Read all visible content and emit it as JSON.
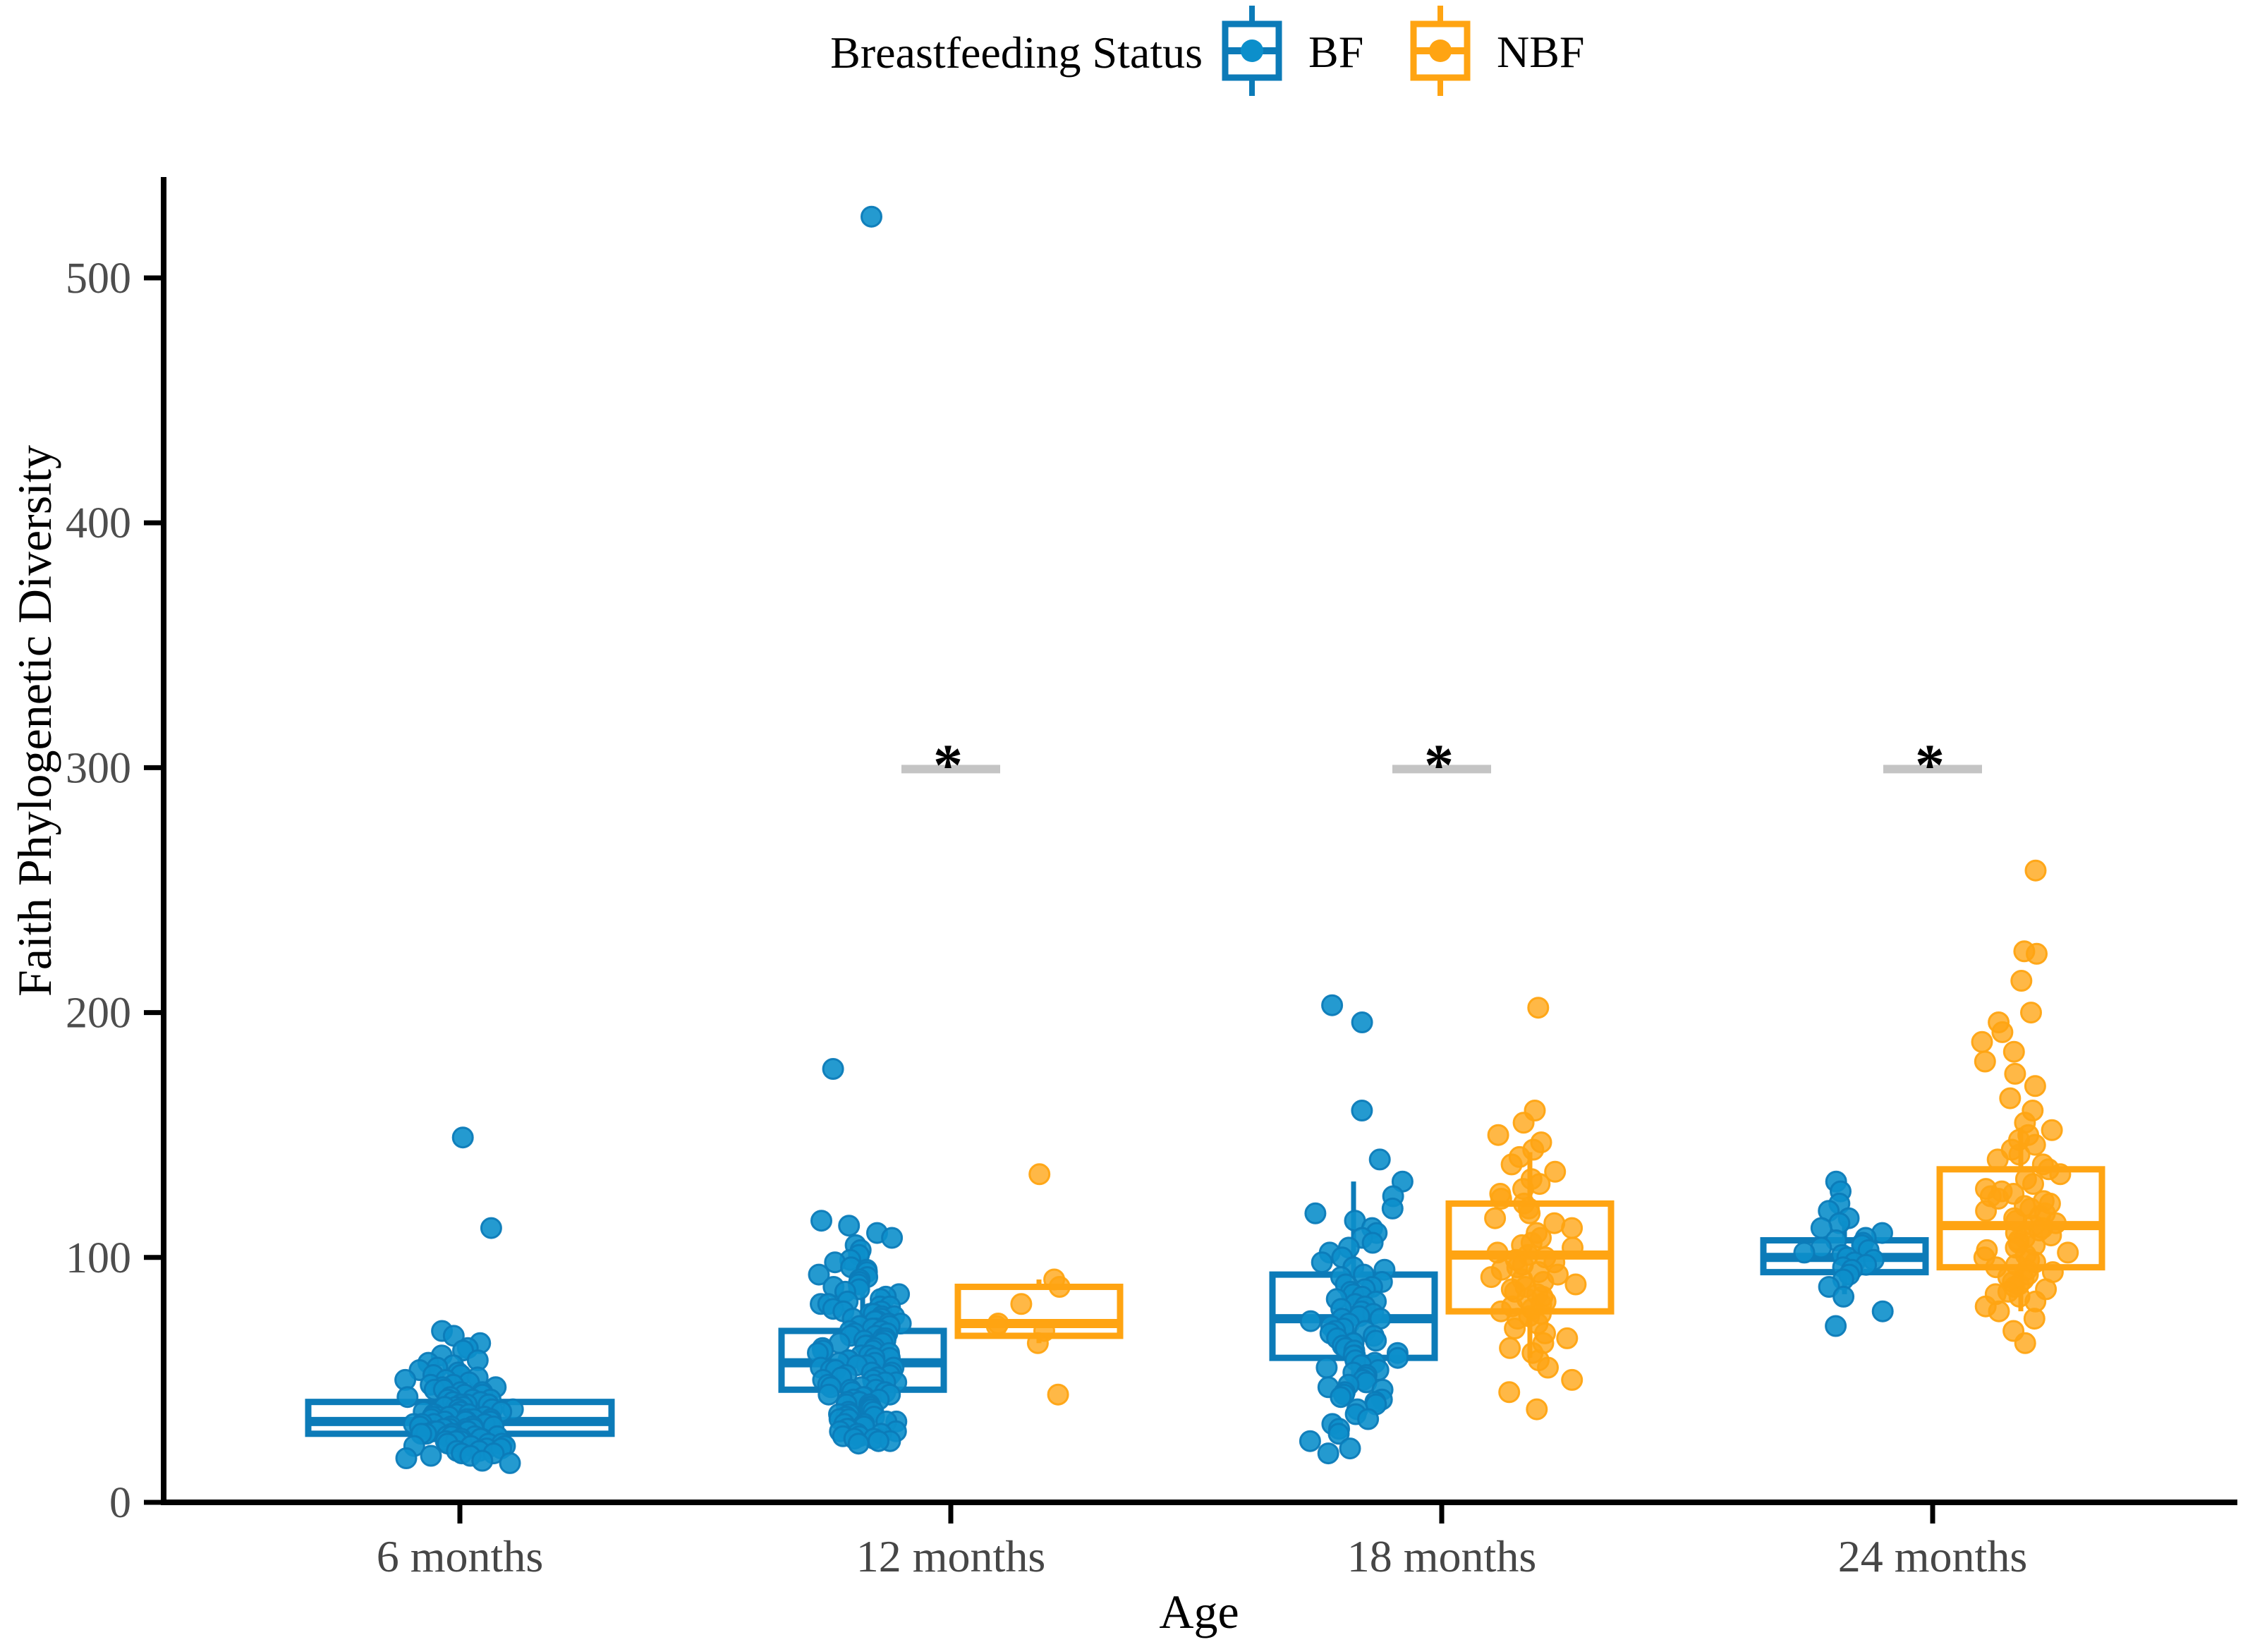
{
  "chart_data": {
    "type": "boxplot",
    "subtype": "grouped boxplot with jittered points",
    "title": "",
    "xlabel": "Age",
    "ylabel": "Faith Phylogenetic Diversity",
    "ylim": [
      0,
      540
    ],
    "yticks": [
      0,
      100,
      200,
      300,
      400,
      500
    ],
    "categories": [
      "6 months",
      "12 months",
      "18 months",
      "24 months"
    ],
    "legend": {
      "title": "Breastfeeding Status",
      "position": "top"
    },
    "colors": {
      "bf_stroke": "#0C7BB8",
      "bf_point": "#0C8FCB",
      "nbf_stroke": "#FFA412",
      "nbf_point": "#FFA412",
      "sig_bar": "#C4C4C4",
      "axis": "#000000",
      "tick_text": "#4D4D4D"
    },
    "series": [
      {
        "name": "BF",
        "stroke": "#0C7BB8",
        "point_fill": "#0C8FCB",
        "boxes": [
          {
            "category": "6 months",
            "whisker_low": 16,
            "q1": 28,
            "median": 33,
            "q3": 41,
            "whisker_high": 60
          },
          {
            "category": "12 months",
            "whisker_low": 26,
            "q1": 46,
            "median": 57,
            "q3": 70,
            "whisker_high": 104
          },
          {
            "category": "18 months",
            "whisker_low": 46,
            "q1": 59,
            "median": 75,
            "q3": 93,
            "whisker_high": 131
          },
          {
            "category": "24 months",
            "whisker_low": 85,
            "q1": 94,
            "median": 100,
            "q3": 107,
            "whisker_high": 115
          }
        ],
        "points": {
          "6 months": [
            149,
            112,
            70,
            68,
            65,
            63,
            62,
            60,
            58,
            57,
            56,
            55,
            54,
            53,
            52,
            52,
            51,
            50,
            50,
            49,
            48,
            48,
            47,
            47,
            46,
            46,
            45,
            45,
            44,
            44,
            43,
            43,
            42,
            42,
            42,
            41,
            41,
            40,
            40,
            40,
            39,
            39,
            39,
            38,
            38,
            38,
            37,
            37,
            37,
            36,
            36,
            36,
            35,
            35,
            35,
            35,
            34,
            34,
            34,
            34,
            33,
            33,
            33,
            33,
            32,
            32,
            32,
            32,
            31,
            31,
            31,
            31,
            30,
            30,
            30,
            30,
            29,
            29,
            29,
            29,
            28,
            28,
            28,
            28,
            27,
            27,
            27,
            27,
            26,
            26,
            26,
            25,
            25,
            25,
            24,
            24,
            24,
            23,
            23,
            23,
            22,
            22,
            21,
            21,
            20,
            20,
            19,
            19,
            18,
            17,
            16
          ],
          "12 months": [
            525,
            177,
            115,
            113,
            110,
            108,
            105,
            103,
            101,
            99,
            98,
            96,
            95,
            94,
            93,
            92,
            91,
            90,
            89,
            88,
            87,
            86,
            85,
            84,
            83,
            82,
            81,
            81,
            80,
            80,
            79,
            78,
            78,
            77,
            77,
            76,
            76,
            75,
            75,
            74,
            74,
            73,
            73,
            72,
            72,
            71,
            71,
            70,
            70,
            69,
            69,
            68,
            68,
            67,
            67,
            66,
            66,
            65,
            65,
            64,
            64,
            63,
            63,
            62,
            62,
            61,
            61,
            60,
            60,
            59,
            59,
            58,
            58,
            57,
            57,
            56,
            56,
            55,
            55,
            54,
            54,
            53,
            53,
            52,
            52,
            51,
            51,
            50,
            50,
            49,
            49,
            48,
            48,
            47,
            47,
            46,
            46,
            45,
            45,
            44,
            44,
            43,
            43,
            42,
            42,
            41,
            41,
            40,
            40,
            39,
            39,
            38,
            38,
            37,
            37,
            36,
            36,
            35,
            35,
            34,
            34,
            33,
            33,
            32,
            32,
            31,
            31,
            30,
            30,
            29,
            29,
            28,
            28,
            27,
            27,
            26,
            26,
            25,
            25,
            24
          ],
          "18 months": [
            203,
            196,
            160,
            140,
            131,
            125,
            120,
            118,
            115,
            112,
            110,
            108,
            106,
            104,
            102,
            100,
            98,
            96,
            95,
            93,
            92,
            90,
            89,
            88,
            87,
            86,
            85,
            84,
            83,
            82,
            81,
            80,
            79,
            78,
            77,
            76,
            75,
            75,
            74,
            73,
            72,
            71,
            70,
            70,
            69,
            68,
            67,
            66,
            65,
            65,
            64,
            63,
            62,
            61,
            60,
            60,
            59,
            58,
            57,
            56,
            55,
            54,
            53,
            52,
            51,
            50,
            49,
            48,
            47,
            46,
            45,
            44,
            43,
            42,
            41,
            40,
            38,
            36,
            34,
            32,
            30,
            28,
            25,
            22,
            20
          ],
          "24 months": [
            131,
            127,
            122,
            119,
            116,
            114,
            112,
            110,
            108,
            107,
            106,
            105,
            104,
            103,
            102,
            101,
            100,
            99,
            98,
            97,
            96,
            95,
            93,
            91,
            88,
            84,
            78,
            72
          ]
        }
      },
      {
        "name": "NBF",
        "stroke": "#FFA412",
        "point_fill": "#FFA412",
        "boxes": [
          {
            "category": "12 months",
            "whisker_low": 65,
            "q1": 68,
            "median": 73,
            "q3": 88,
            "whisker_high": 91
          },
          {
            "category": "18 months",
            "whisker_low": 59,
            "q1": 78,
            "median": 101,
            "q3": 122,
            "whisker_high": 143
          },
          {
            "category": "24 months",
            "whisker_low": 78,
            "q1": 96,
            "median": 113,
            "q3": 136,
            "whisker_high": 153
          }
        ],
        "points": {
          "12 months": [
            134,
            91,
            88,
            81,
            73,
            72,
            70,
            65,
            44
          ],
          "18 months": [
            202,
            160,
            155,
            150,
            147,
            144,
            141,
            138,
            135,
            132,
            130,
            128,
            126,
            124,
            122,
            120,
            118,
            116,
            114,
            112,
            110,
            108,
            106,
            105,
            104,
            102,
            101,
            100,
            99,
            98,
            97,
            96,
            95,
            94,
            93,
            92,
            91,
            90,
            89,
            88,
            87,
            86,
            85,
            84,
            83,
            82,
            81,
            80,
            79,
            78,
            77,
            76,
            75,
            73,
            71,
            69,
            67,
            65,
            63,
            61,
            58,
            55,
            50,
            45,
            38
          ],
          "24 months": [
            258,
            225,
            224,
            213,
            200,
            196,
            192,
            188,
            184,
            180,
            175,
            170,
            165,
            160,
            155,
            152,
            150,
            148,
            146,
            144,
            142,
            140,
            138,
            136,
            134,
            132,
            130,
            128,
            127,
            126,
            125,
            124,
            123,
            122,
            121,
            120,
            119,
            118,
            117,
            116,
            115,
            114,
            113,
            112,
            111,
            110,
            109,
            108,
            107,
            106,
            105,
            104,
            103,
            102,
            101,
            100,
            99,
            98,
            97,
            96,
            95,
            94,
            93,
            92,
            91,
            90,
            89,
            88,
            87,
            86,
            85,
            84,
            82,
            80,
            78,
            75,
            70,
            65
          ]
        }
      }
    ],
    "significance": [
      {
        "category": "12 months",
        "y": 300,
        "label": "*"
      },
      {
        "category": "18 months",
        "y": 300,
        "label": "*"
      },
      {
        "category": "24 months",
        "y": 300,
        "label": "*"
      }
    ]
  }
}
